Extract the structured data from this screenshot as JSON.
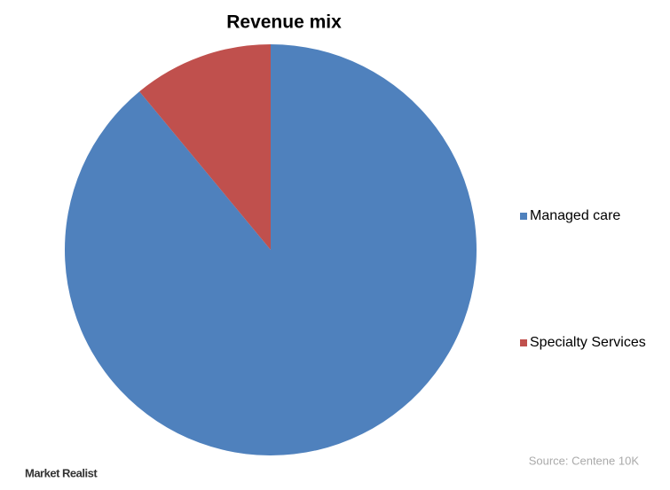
{
  "chart_data": {
    "type": "pie",
    "title": "Revenue mix",
    "categories": [
      "Managed care",
      "Specialty Services"
    ],
    "values": [
      89,
      11
    ],
    "colors": [
      "#4f81bd",
      "#c0504d"
    ],
    "legend": "right",
    "source": "Source: Centene 10K",
    "watermark": "Market Realist"
  }
}
